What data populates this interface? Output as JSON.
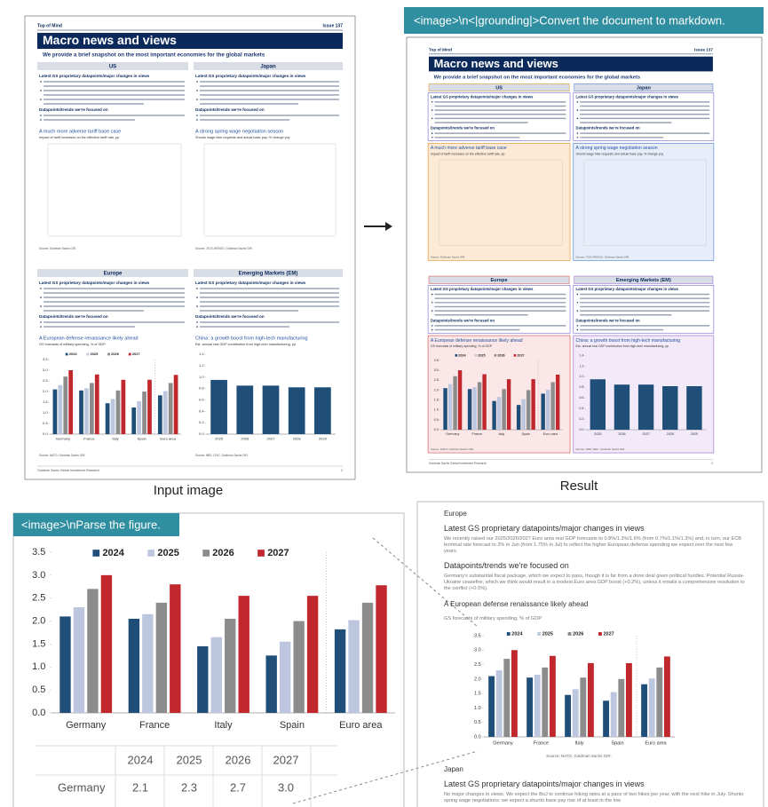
{
  "labels": {
    "input": "Input image",
    "result": "Result"
  },
  "prompts": {
    "document": "<image>\\n<|grounding|>Convert the document to markdown.",
    "figure": "<image>\\nParse the figure."
  },
  "doc": {
    "header_left": "Top of Mind",
    "header_right": "Issue 137",
    "title": "Macro news and views",
    "subtitle": "We provide a brief snapshot on the most important economies for the global markets",
    "sections": [
      {
        "name": "US",
        "heading": "Latest GS proprietary datapoints/major changes in views",
        "sub": "Datapoints/trends we're focused on",
        "chart_title": "A much more adverse tariff base case",
        "chart_sub": "Impact of tariff increases on the effective tariff rate, pp",
        "source": "Source: Goldman Sachs GIR."
      },
      {
        "name": "Japan",
        "heading": "Latest GS proprietary datapoints/major changes in views",
        "sub": "Datapoints/trends we're focused on",
        "chart_title": "A strong spring wage negotiation season",
        "chart_sub": "Shunto wage hike requests and actual base pay, % change yoy",
        "source": "Source: JTUC-RENGO, Goldman Sachs GIR."
      },
      {
        "name": "Europe",
        "heading": "Latest GS proprietary datapoints/major changes in views",
        "sub": "Datapoints/trends we're focused on",
        "chart_title": "A European defense renaissance likely ahead",
        "chart_sub": "GS forecasts of military spending, % of GDP",
        "source": "Source: NATO, Goldman Sachs GIR."
      },
      {
        "name": "Emerging Markets (EM)",
        "heading": "Latest GS proprietary datapoints/major changes in views",
        "sub": "Datapoints/trends we're focused on",
        "chart_title": "China: a growth boost from high-tech manufacturing",
        "chart_sub": "Est. annual real GDP contribution from high-tech manufacturing, pp",
        "source": "Source: NBS, CEIC, Goldman Sachs GIR."
      }
    ],
    "footer": "Goldman Sachs Global Investment Research",
    "page": "2"
  },
  "chart_data": {
    "type": "bar",
    "categories": [
      "Germany",
      "France",
      "Italy",
      "Spain",
      "Euro area"
    ],
    "series": [
      {
        "name": "2024",
        "color": "#1f4e79",
        "values": [
          2.1,
          2.05,
          1.45,
          1.25,
          1.82
        ]
      },
      {
        "name": "2025",
        "color": "#bcc6de",
        "values": [
          2.3,
          2.15,
          1.65,
          1.55,
          2.02
        ]
      },
      {
        "name": "2026",
        "color": "#8c8c8c",
        "values": [
          2.7,
          2.4,
          2.05,
          2.0,
          2.4
        ]
      },
      {
        "name": "2027",
        "color": "#c0282d",
        "values": [
          3.0,
          2.8,
          2.55,
          2.55,
          2.78
        ]
      }
    ],
    "ylim": [
      0,
      3.5
    ],
    "yticks": [
      {
        "value": 0,
        "label": "0.0"
      },
      0.5,
      {
        "value": 1,
        "label": "1.0"
      },
      1.5,
      {
        "value": 2,
        "label": "2.0"
      },
      2.5,
      {
        "value": 3,
        "label": "3.0"
      },
      3.5
    ]
  },
  "em_chart": {
    "type": "bar",
    "categories": [
      "2025",
      "2026",
      "2027",
      "2028",
      "2029"
    ],
    "values": [
      0.95,
      0.85,
      0.85,
      0.82,
      0.82
    ],
    "color": "#1f4e79",
    "ylim": [
      0,
      1.4
    ],
    "yticks": [
      {
        "value": 0,
        "label": "0.0"
      },
      0.2,
      0.4,
      0.6,
      0.8,
      {
        "value": 1,
        "label": "1.0"
      },
      1.2,
      1.4
    ]
  },
  "table": {
    "columns": [
      "2024",
      "2025",
      "2026",
      "2027"
    ],
    "rows": [
      [
        "Germany",
        "2.1",
        "2.3",
        "2.7",
        "3.0"
      ]
    ]
  },
  "markdown": {
    "europe_views": "We recently raised our 2025/2026/2027 Euro area real GDP forecasts to 0.8%/1.3%/1.6% (from 0.7%/1.1%/1.3%) and, in turn, our ECB terminal rate forecast to 2% in Jun (from 1.75% in Jul) to reflect the higher European defense spending we expect over the next few years.",
    "europe_trends": "Germany's substantial fiscal package, which we expect to pass, though it is far from a done deal given political hurdles. Potential Russia-Ukraine ceasefire, which we think would result in a modest Euro area GDP boost (+0.2%), unless it entails a comprehensive resolution to the conflict (+0.5%).",
    "japan_views": "No major changes in views. We expect the BoJ to continue hiking rates at a pace of two hikes per year, with the next hike in July. Shunto spring wage negotiations: we expect a shunto base pay rise of at least in the low"
  }
}
